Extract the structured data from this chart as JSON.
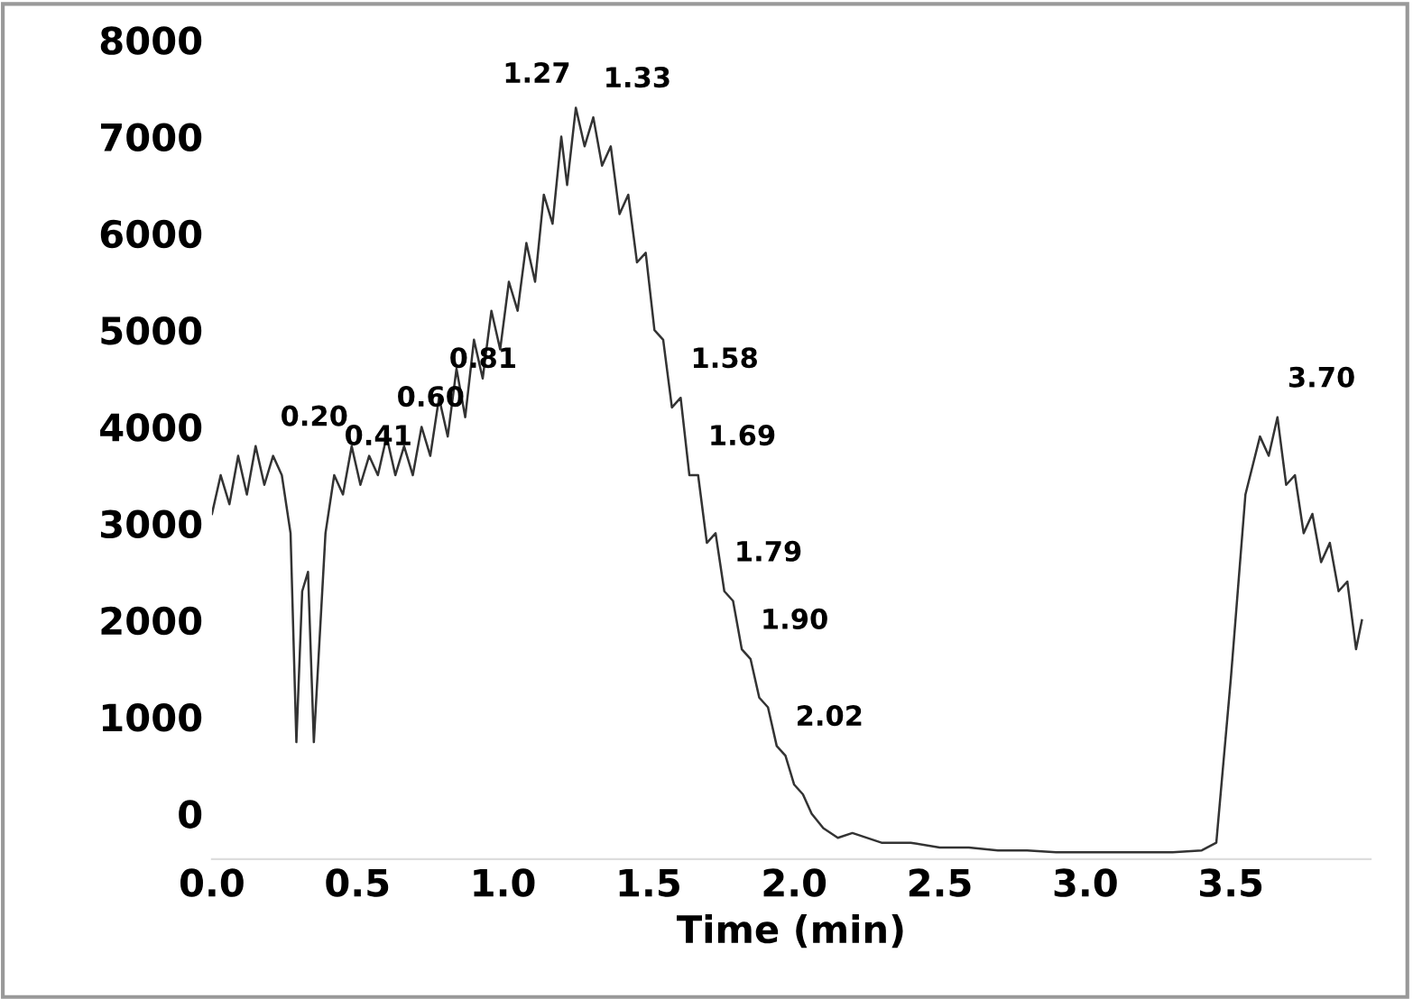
{
  "chart_data": {
    "type": "line",
    "xlabel": "Time (min)",
    "series": [
      {
        "color": "#333333",
        "x": [
          0.0,
          0.03,
          0.06,
          0.09,
          0.12,
          0.15,
          0.18,
          0.21,
          0.24,
          0.27,
          0.29,
          0.31,
          0.33,
          0.35,
          0.39,
          0.42,
          0.45,
          0.48,
          0.51,
          0.54,
          0.57,
          0.6,
          0.63,
          0.66,
          0.69,
          0.72,
          0.75,
          0.78,
          0.81,
          0.84,
          0.87,
          0.9,
          0.93,
          0.96,
          0.99,
          1.02,
          1.05,
          1.08,
          1.11,
          1.14,
          1.17,
          1.2,
          1.22,
          1.25,
          1.28,
          1.31,
          1.34,
          1.37,
          1.4,
          1.43,
          1.46,
          1.49,
          1.52,
          1.55,
          1.58,
          1.61,
          1.64,
          1.67,
          1.7,
          1.73,
          1.76,
          1.79,
          1.82,
          1.85,
          1.88,
          1.91,
          1.94,
          1.97,
          2.0,
          2.03,
          2.06,
          2.1,
          2.15,
          2.2,
          2.3,
          2.4,
          2.5,
          2.6,
          2.7,
          2.8,
          2.9,
          3.0,
          3.1,
          3.2,
          3.3,
          3.4,
          3.45,
          3.5,
          3.55,
          3.6,
          3.63,
          3.66,
          3.69,
          3.72,
          3.75,
          3.78,
          3.81,
          3.84,
          3.87,
          3.9,
          3.93,
          3.95
        ],
        "values": [
          3100,
          3500,
          3200,
          3700,
          3300,
          3800,
          3400,
          3700,
          3500,
          2900,
          740,
          2300,
          2500,
          740,
          2900,
          3500,
          3300,
          3800,
          3400,
          3700,
          3500,
          3900,
          3500,
          3800,
          3500,
          4000,
          3700,
          4300,
          3900,
          4600,
          4100,
          4900,
          4500,
          5200,
          4800,
          5500,
          5200,
          5900,
          5500,
          6400,
          6100,
          7000,
          6500,
          7300,
          6900,
          7200,
          6700,
          6900,
          6200,
          6400,
          5700,
          5800,
          5000,
          4900,
          4200,
          4300,
          3500,
          3500,
          2800,
          2900,
          2300,
          2200,
          1700,
          1600,
          1200,
          1100,
          700,
          600,
          300,
          200,
          0,
          -150,
          -250,
          -200,
          -300,
          -300,
          -350,
          -350,
          -380,
          -380,
          -400,
          -400,
          -400,
          -400,
          -400,
          -380,
          -300,
          1400,
          3300,
          3900,
          3700,
          4100,
          3400,
          3500,
          2900,
          3100,
          2600,
          2800,
          2300,
          2400,
          1700,
          2000
        ]
      }
    ],
    "xlim": [
      0,
      3.98
    ],
    "xticks": [
      {
        "value": 0,
        "label": "0.0"
      },
      {
        "value": 0.5,
        "label": "0.5"
      },
      {
        "value": 1,
        "label": "1.0"
      },
      {
        "value": 1.5,
        "label": "1.5"
      },
      {
        "value": 2,
        "label": "2.0"
      },
      {
        "value": 2.5,
        "label": "2.5"
      },
      {
        "value": 3,
        "label": "3.0"
      },
      {
        "value": 3.5,
        "label": "3.5"
      }
    ],
    "ylim": [
      -470,
      8000
    ],
    "yticks": [
      0,
      1000,
      2000,
      3000,
      4000,
      5000,
      6000,
      7000,
      8000
    ],
    "grid": false,
    "legend": false,
    "marker": "none",
    "line_style": "solid",
    "annotations": [
      {
        "text": "0.20",
        "x": 0.2,
        "y": 3700
      },
      {
        "text": "0.41",
        "x": 0.42,
        "y": 3500
      },
      {
        "text": "0.60",
        "x": 0.6,
        "y": 3900
      },
      {
        "text": "0.81",
        "x": 0.78,
        "y": 4300
      },
      {
        "text": "1.27",
        "x": 1.25,
        "y": 7300
      },
      {
        "text": "1.33",
        "x": 1.31,
        "y": 7200
      },
      {
        "text": "1.58",
        "x": 1.61,
        "y": 4300
      },
      {
        "text": "1.69",
        "x": 1.67,
        "y": 3500
      },
      {
        "text": "1.79",
        "x": 1.76,
        "y": 2300
      },
      {
        "text": "1.90",
        "x": 1.85,
        "y": 1600
      },
      {
        "text": "2.02",
        "x": 1.97,
        "y": 600
      },
      {
        "text": "3.70",
        "x": 3.66,
        "y": 4100
      }
    ]
  }
}
